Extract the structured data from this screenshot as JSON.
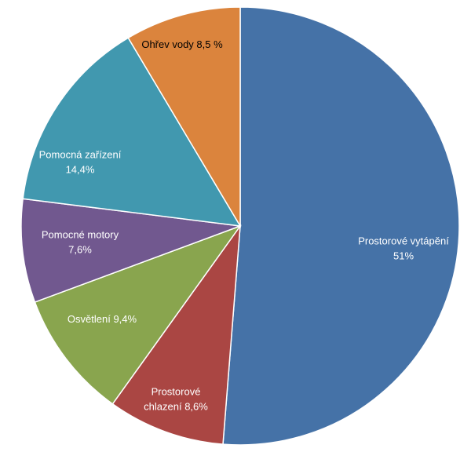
{
  "chart_data": {
    "type": "pie",
    "start": "12 o'clock",
    "direction": "clockwise",
    "slices": [
      {
        "lines": [
          "Prostorové vytápění",
          "51%"
        ],
        "value": 51,
        "color": "#4572A7",
        "text_color": "#ffffff"
      },
      {
        "lines": [
          "Prostorové",
          "chlazení 8,6%"
        ],
        "value": 8.6,
        "color": "#AA4643",
        "text_color": "#ffffff"
      },
      {
        "lines": [
          "Osvětlení 9,4%"
        ],
        "value": 9.4,
        "color": "#89A54E",
        "text_color": "#ffffff"
      },
      {
        "lines": [
          "Pomocné motory",
          "7,6%"
        ],
        "value": 7.6,
        "color": "#71588F",
        "text_color": "#ffffff"
      },
      {
        "lines": [
          "Pomocná zařízení",
          "14,4%"
        ],
        "value": 14.4,
        "color": "#4198AF",
        "text_color": "#ffffff"
      },
      {
        "lines": [
          "Ohřev vody 8,5 %"
        ],
        "value": 8.5,
        "color": "#DB843D",
        "text_color": "#000000"
      }
    ]
  }
}
